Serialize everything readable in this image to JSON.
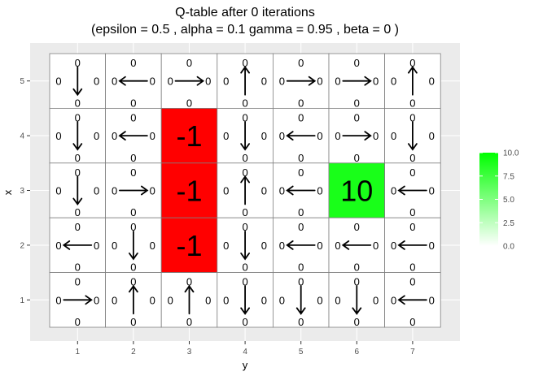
{
  "chart_data": {
    "type": "heatmap",
    "title_line1": "Q-table after  0  iterations",
    "title_line2": "(epsilon =  0.5 , alpha =  0.1 gamma =  0.95 , beta =  0 )",
    "xlabel": "y",
    "ylabel": "x",
    "x_ticks": [
      "1",
      "2",
      "3",
      "4",
      "5",
      "6",
      "7"
    ],
    "y_ticks": [
      "1",
      "2",
      "3",
      "4",
      "5"
    ],
    "grid": true,
    "legend": {
      "position": "right",
      "min": 0,
      "max": 10,
      "ticks": [
        "10.0",
        "7.5",
        "5.0",
        "2.5",
        "0.0"
      ],
      "color_low": "#ffffff",
      "color_high": "#00ff00"
    },
    "colors": {
      "negative": "#ff0000",
      "goal": "#19ff19",
      "neutral": "#ffffff"
    },
    "cells": [
      {
        "x": 5,
        "y": 1,
        "q": {
          "up": "0",
          "down": "0",
          "left": "0",
          "right": "0"
        },
        "arrow": "down"
      },
      {
        "x": 5,
        "y": 2,
        "q": {
          "up": "0",
          "down": "0",
          "left": "0",
          "right": "0"
        },
        "arrow": "left"
      },
      {
        "x": 5,
        "y": 3,
        "q": {
          "up": "0",
          "down": "0",
          "left": "0",
          "right": "0"
        },
        "arrow": "right"
      },
      {
        "x": 5,
        "y": 4,
        "q": {
          "up": "0",
          "down": "0",
          "left": "0",
          "right": "0"
        },
        "arrow": "up"
      },
      {
        "x": 5,
        "y": 5,
        "q": {
          "up": "0",
          "down": "0",
          "left": "0",
          "right": "0"
        },
        "arrow": "right"
      },
      {
        "x": 5,
        "y": 6,
        "q": {
          "up": "0",
          "down": "0",
          "left": "0",
          "right": "0"
        },
        "arrow": "right"
      },
      {
        "x": 5,
        "y": 7,
        "q": {
          "up": "0",
          "down": "0",
          "left": "0",
          "right": "0"
        },
        "arrow": "up"
      },
      {
        "x": 4,
        "y": 1,
        "q": {
          "up": "0",
          "down": "0",
          "left": "0",
          "right": "0"
        },
        "arrow": "down"
      },
      {
        "x": 4,
        "y": 2,
        "q": {
          "up": "0",
          "down": "0",
          "left": "0",
          "right": "0"
        },
        "arrow": "left"
      },
      {
        "x": 4,
        "y": 3,
        "value": -1,
        "label": "-1"
      },
      {
        "x": 4,
        "y": 4,
        "q": {
          "up": "0",
          "down": "0",
          "left": "0",
          "right": "0"
        },
        "arrow": "down"
      },
      {
        "x": 4,
        "y": 5,
        "q": {
          "up": "0",
          "down": "0",
          "left": "0",
          "right": "0"
        },
        "arrow": "left"
      },
      {
        "x": 4,
        "y": 6,
        "q": {
          "up": "0",
          "down": "0",
          "left": "0",
          "right": "0"
        },
        "arrow": "right"
      },
      {
        "x": 4,
        "y": 7,
        "q": {
          "up": "0",
          "down": "0",
          "left": "0",
          "right": "0"
        },
        "arrow": "down"
      },
      {
        "x": 3,
        "y": 1,
        "q": {
          "up": "0",
          "down": "0",
          "left": "0",
          "right": "0"
        },
        "arrow": "down"
      },
      {
        "x": 3,
        "y": 2,
        "q": {
          "up": "0",
          "down": "0",
          "left": "0",
          "right": "0"
        },
        "arrow": "right"
      },
      {
        "x": 3,
        "y": 3,
        "value": -1,
        "label": "-1"
      },
      {
        "x": 3,
        "y": 4,
        "q": {
          "up": "0",
          "down": "0",
          "left": "0",
          "right": "0"
        },
        "arrow": "up"
      },
      {
        "x": 3,
        "y": 5,
        "q": {
          "up": "0",
          "down": "0",
          "left": "0",
          "right": "0"
        },
        "arrow": "left"
      },
      {
        "x": 3,
        "y": 6,
        "value": 10,
        "label": "10"
      },
      {
        "x": 3,
        "y": 7,
        "q": {
          "up": "0",
          "down": "0",
          "left": "0",
          "right": "0"
        },
        "arrow": "left"
      },
      {
        "x": 2,
        "y": 1,
        "q": {
          "up": "0",
          "down": "0",
          "left": "0",
          "right": "0"
        },
        "arrow": "left"
      },
      {
        "x": 2,
        "y": 2,
        "q": {
          "up": "0",
          "down": "0",
          "left": "0",
          "right": "0"
        },
        "arrow": "down"
      },
      {
        "x": 2,
        "y": 3,
        "value": -1,
        "label": "-1"
      },
      {
        "x": 2,
        "y": 4,
        "q": {
          "up": "0",
          "down": "0",
          "left": "0",
          "right": "0"
        },
        "arrow": "down"
      },
      {
        "x": 2,
        "y": 5,
        "q": {
          "up": "0",
          "down": "0",
          "left": "0",
          "right": "0"
        },
        "arrow": "left"
      },
      {
        "x": 2,
        "y": 6,
        "q": {
          "up": "0",
          "down": "0",
          "left": "0",
          "right": "0"
        },
        "arrow": "left"
      },
      {
        "x": 2,
        "y": 7,
        "q": {
          "up": "0",
          "down": "0",
          "left": "0",
          "right": "0"
        },
        "arrow": "left"
      },
      {
        "x": 1,
        "y": 1,
        "q": {
          "up": "0",
          "down": "0",
          "left": "0",
          "right": "0"
        },
        "arrow": "right"
      },
      {
        "x": 1,
        "y": 2,
        "q": {
          "up": "0",
          "down": "0",
          "left": "0",
          "right": "0"
        },
        "arrow": "up"
      },
      {
        "x": 1,
        "y": 3,
        "q": {
          "up": "0",
          "down": "0",
          "left": "0",
          "right": "0"
        },
        "arrow": "up"
      },
      {
        "x": 1,
        "y": 4,
        "q": {
          "up": "0",
          "down": "0",
          "left": "0",
          "right": "0"
        },
        "arrow": "down"
      },
      {
        "x": 1,
        "y": 5,
        "q": {
          "up": "0",
          "down": "0",
          "left": "0",
          "right": "0"
        },
        "arrow": "down"
      },
      {
        "x": 1,
        "y": 6,
        "q": {
          "up": "0",
          "down": "0",
          "left": "0",
          "right": "0"
        },
        "arrow": "down"
      },
      {
        "x": 1,
        "y": 7,
        "q": {
          "up": "0",
          "down": "0",
          "left": "0",
          "right": "0"
        },
        "arrow": "left"
      }
    ]
  }
}
